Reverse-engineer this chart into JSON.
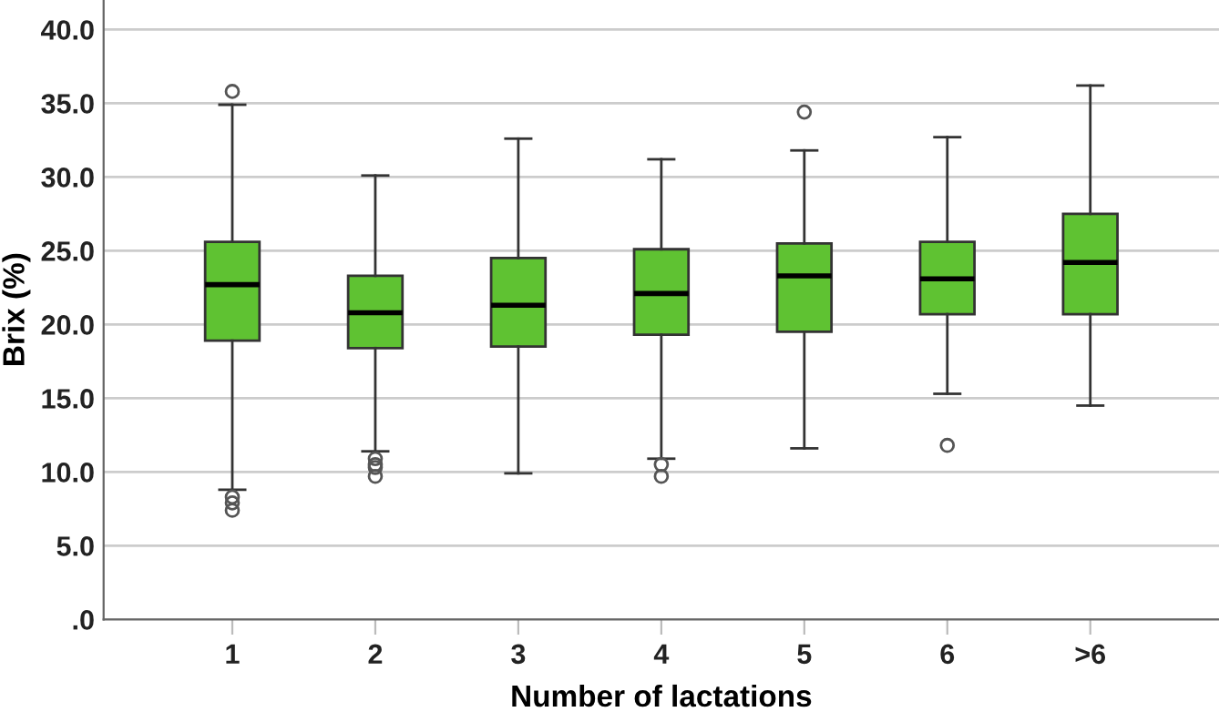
{
  "chart_data": {
    "type": "box",
    "xlabel": "Number of lactations",
    "ylabel": "Brix (%)",
    "categories": [
      "1",
      "2",
      "3",
      "4",
      "5",
      "6",
      ">6"
    ],
    "color": "#5fc232",
    "boxes": [
      {
        "low": 8.8,
        "q1": 18.9,
        "median": 22.7,
        "q3": 25.6,
        "high": 34.9,
        "outliers": [
          35.8,
          8.3,
          7.9,
          7.4
        ]
      },
      {
        "low": 11.4,
        "q1": 18.4,
        "median": 20.8,
        "q3": 23.3,
        "high": 30.1,
        "outliers": [
          10.9,
          10.5,
          10.3,
          9.7
        ]
      },
      {
        "low": 9.9,
        "q1": 18.5,
        "median": 21.3,
        "q3": 24.5,
        "high": 32.6
      },
      {
        "low": 10.9,
        "q1": 19.3,
        "median": 22.1,
        "q3": 25.1,
        "high": 31.2,
        "outliers": [
          10.5,
          9.7
        ]
      },
      {
        "low": 11.6,
        "q1": 19.5,
        "median": 23.3,
        "q3": 25.5,
        "high": 31.8,
        "outliers": [
          34.4
        ]
      },
      {
        "low": 15.3,
        "q1": 20.7,
        "median": 23.1,
        "q3": 25.6,
        "high": 32.7,
        "outliers": [
          11.8
        ]
      },
      {
        "low": 14.5,
        "q1": 20.7,
        "median": 24.2,
        "q3": 27.5,
        "high": 36.2
      }
    ],
    "ylim": [
      0,
      42
    ],
    "yticks": [
      {
        "value": 0,
        "label": ".0"
      },
      {
        "value": 5,
        "label": "5.0"
      },
      {
        "value": 10,
        "label": "10.0"
      },
      {
        "value": 15,
        "label": "15.0"
      },
      {
        "value": 20,
        "label": "20.0"
      },
      {
        "value": 25,
        "label": "25.0"
      },
      {
        "value": 30,
        "label": "30.0"
      },
      {
        "value": 35,
        "label": "35.0"
      },
      {
        "value": 40,
        "label": "40.0"
      }
    ],
    "grid": "y"
  }
}
